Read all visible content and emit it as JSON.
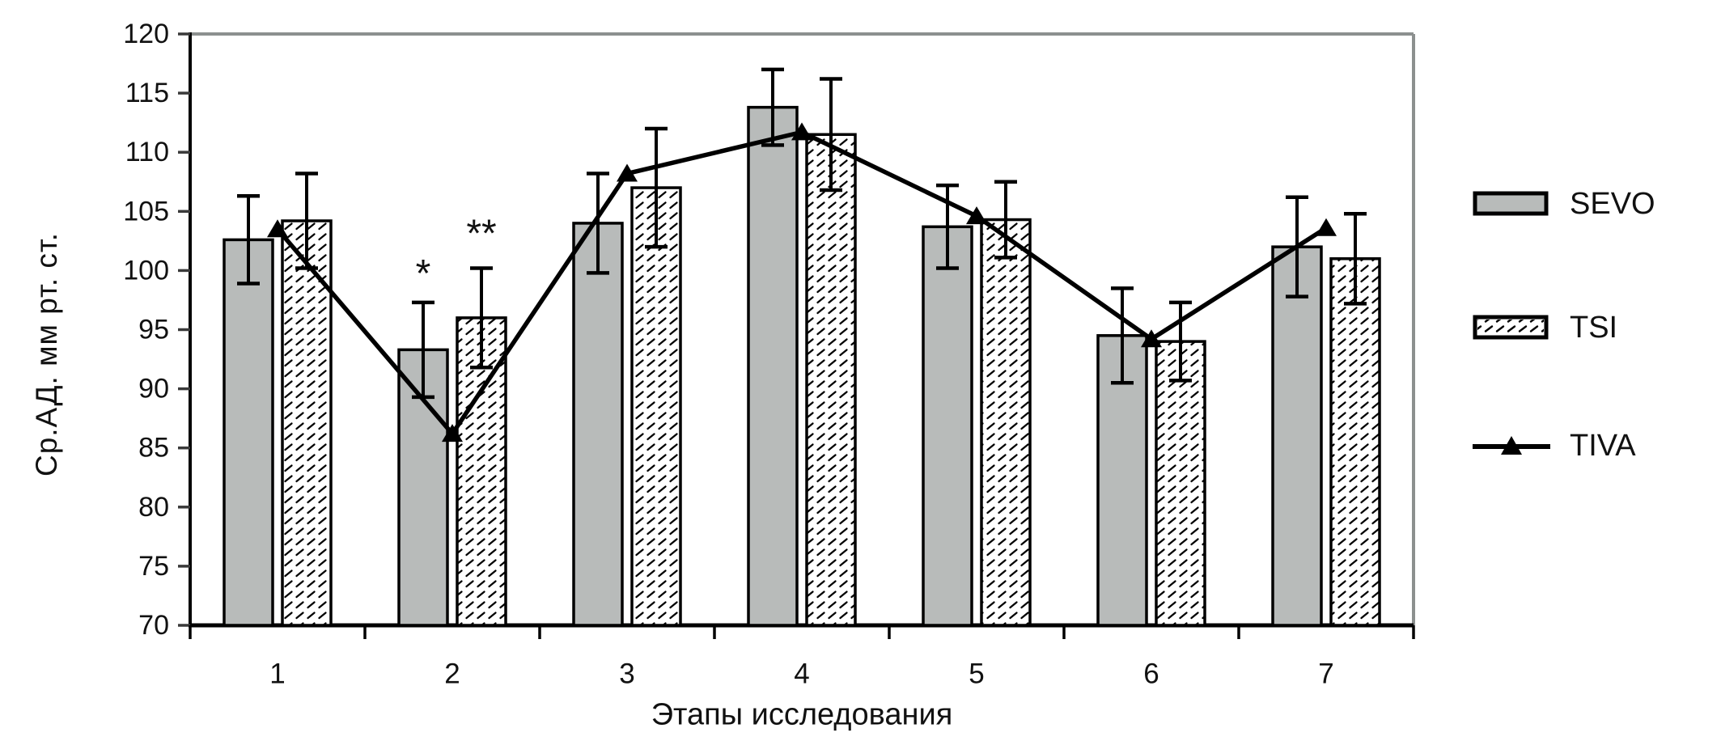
{
  "figure": {
    "title": "",
    "ylabel": "Ср.АД. мм рт. ст.",
    "xlabel": "Этапы исследования"
  },
  "colors": {
    "bar_solid_fill": "#b8bbba",
    "bar_border": "#000000",
    "hatch_background": "#ffffff",
    "hatch_stroke": "#000000",
    "line": "#000000",
    "frame_gray": "#8c908f",
    "axis_black": "#000000",
    "text": "#111111"
  },
  "chart_data": {
    "type": "bar+line",
    "categories": [
      "1",
      "2",
      "3",
      "4",
      "5",
      "6",
      "7"
    ],
    "xlabel": "Этапы исследования",
    "ylabel": "Ср.АД. мм рт. ст.",
    "ylim": [
      70,
      120
    ],
    "ytick_step": 5,
    "grid": false,
    "legend_position": "right",
    "series": [
      {
        "name": "SEVO",
        "type": "bar",
        "style": "solid-gray",
        "values": [
          102.6,
          93.3,
          104.0,
          113.8,
          103.7,
          94.5,
          102.0
        ],
        "errors": [
          3.7,
          4.0,
          4.2,
          3.2,
          3.5,
          4.0,
          4.2
        ]
      },
      {
        "name": "TSI",
        "type": "bar",
        "style": "hatched",
        "values": [
          104.2,
          96.0,
          107.0,
          111.5,
          104.3,
          94.0,
          101.0
        ],
        "errors": [
          4.0,
          4.2,
          5.0,
          4.7,
          3.2,
          3.3,
          3.8
        ]
      },
      {
        "name": "TIVA",
        "type": "line",
        "marker": "triangle",
        "values": [
          103.5,
          86.2,
          108.2,
          111.7,
          104.6,
          94.2,
          103.6
        ]
      }
    ],
    "annotations": [
      {
        "text": "*",
        "category": "2",
        "series": "SEVO",
        "y": 100.3
      },
      {
        "text": "**",
        "category": "2",
        "series": "TSI",
        "y": 103.7
      }
    ]
  }
}
